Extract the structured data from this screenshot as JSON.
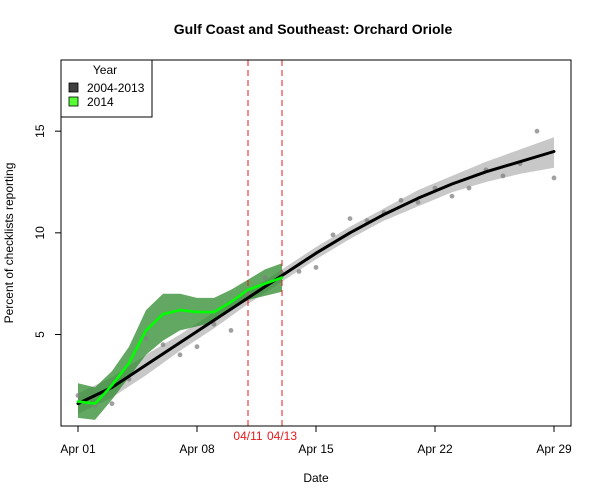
{
  "chart_data": {
    "type": "line",
    "title": "Gulf Coast and Southeast: Orchard Oriole",
    "xlabel": "Date",
    "ylabel": "Percent of checklists reporting",
    "xlim": [
      "2014-03-31",
      "2014-04-30"
    ],
    "ylim": [
      0.5,
      18.5
    ],
    "x_ticks": [
      {
        "date": "2014-04-01",
        "label": "Apr 01"
      },
      {
        "date": "2014-04-08",
        "label": "Apr 08"
      },
      {
        "date": "2014-04-15",
        "label": "Apr 15"
      },
      {
        "date": "2014-04-22",
        "label": "Apr 22"
      },
      {
        "date": "2014-04-29",
        "label": "Apr 29"
      }
    ],
    "y_ticks": [
      5,
      10,
      15
    ],
    "reference_lines": [
      {
        "date": "2014-04-11",
        "label": "04/11",
        "color": "#e41a1c"
      },
      {
        "date": "2014-04-13",
        "label": "04/13",
        "color": "#e41a1c"
      }
    ],
    "legend": {
      "title": "Year",
      "position": "top-left",
      "entries": [
        {
          "label": "2004-2013",
          "color": "#404040"
        },
        {
          "label": "2014",
          "color": "#55ff33"
        }
      ]
    },
    "series": [
      {
        "name": "2004-2013",
        "color": "#000000",
        "band_color": "#bebebe",
        "x": [
          "2014-04-01",
          "2014-04-03",
          "2014-04-05",
          "2014-04-07",
          "2014-04-09",
          "2014-04-11",
          "2014-04-13",
          "2014-04-15",
          "2014-04-17",
          "2014-04-19",
          "2014-04-21",
          "2014-04-23",
          "2014-04-25",
          "2014-04-27",
          "2014-04-29"
        ],
        "values": [
          1.6,
          2.4,
          3.5,
          4.6,
          5.7,
          6.8,
          7.9,
          9.0,
          10.0,
          10.9,
          11.7,
          12.4,
          13.0,
          13.5,
          14.0
        ],
        "lower": [
          1.1,
          1.9,
          3.0,
          4.2,
          5.3,
          6.5,
          7.6,
          8.7,
          9.7,
          10.6,
          11.3,
          12.0,
          12.5,
          12.9,
          13.2
        ],
        "upper": [
          2.1,
          2.9,
          4.0,
          5.0,
          6.1,
          7.1,
          8.2,
          9.3,
          10.3,
          11.2,
          12.1,
          12.8,
          13.5,
          14.1,
          14.7
        ]
      },
      {
        "name": "2014",
        "color": "#00ff00",
        "band_color": "#2e8b2e",
        "x": [
          "2014-04-01",
          "2014-04-02",
          "2014-04-03",
          "2014-04-04",
          "2014-04-05",
          "2014-04-06",
          "2014-04-07",
          "2014-04-08",
          "2014-04-09",
          "2014-04-10",
          "2014-04-11",
          "2014-04-12",
          "2014-04-13"
        ],
        "values": [
          1.7,
          1.6,
          2.5,
          3.6,
          5.2,
          6.0,
          6.2,
          6.1,
          6.1,
          6.6,
          7.2,
          7.5,
          7.8
        ],
        "lower": [
          0.9,
          0.8,
          1.8,
          2.9,
          4.0,
          4.7,
          5.2,
          5.4,
          5.6,
          6.2,
          6.7,
          6.9,
          7.1
        ],
        "upper": [
          2.6,
          2.4,
          3.2,
          4.4,
          6.2,
          7.0,
          7.0,
          6.8,
          6.8,
          7.2,
          7.7,
          8.2,
          8.5
        ]
      }
    ],
    "points": {
      "color": "#808080",
      "x": [
        "2014-04-01",
        "2014-04-02",
        "2014-04-03",
        "2014-04-04",
        "2014-04-05",
        "2014-04-06",
        "2014-04-07",
        "2014-04-08",
        "2014-04-09",
        "2014-04-10",
        "2014-04-11",
        "2014-04-12",
        "2014-04-13",
        "2014-04-14",
        "2014-04-15",
        "2014-04-16",
        "2014-04-17",
        "2014-04-18",
        "2014-04-19",
        "2014-04-20",
        "2014-04-21",
        "2014-04-22",
        "2014-04-23",
        "2014-04-24",
        "2014-04-25",
        "2014-04-26",
        "2014-04-27",
        "2014-04-28",
        "2014-04-29"
      ],
      "y": [
        2.0,
        1.5,
        1.6,
        2.8,
        4.8,
        4.5,
        4.0,
        4.4,
        5.5,
        5.2,
        7.0,
        7.8,
        8.0,
        8.1,
        8.3,
        9.9,
        10.7,
        10.6,
        11.0,
        11.6,
        11.5,
        12.2,
        11.8,
        12.2,
        13.1,
        12.8,
        13.4,
        15.0,
        12.7
      ]
    }
  }
}
